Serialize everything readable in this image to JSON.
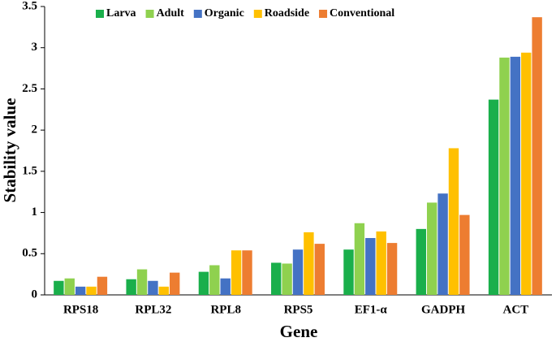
{
  "chart_data": {
    "type": "bar",
    "x_label": "Gene",
    "y_label": "Stability value",
    "categories": [
      "RPS18",
      "RPL32",
      "RPL8",
      "RPS5",
      "EF1-α",
      "GADPH",
      "ACT"
    ],
    "series": [
      {
        "name": "Larva",
        "color": "#1aaf4b",
        "values": [
          0.17,
          0.19,
          0.28,
          0.39,
          0.55,
          0.8,
          2.37
        ]
      },
      {
        "name": "Adult",
        "color": "#8fd14f",
        "values": [
          0.2,
          0.31,
          0.36,
          0.38,
          0.87,
          1.12,
          2.88
        ]
      },
      {
        "name": "Organic",
        "color": "#4472c4",
        "values": [
          0.1,
          0.17,
          0.2,
          0.55,
          0.69,
          1.23,
          2.89
        ]
      },
      {
        "name": "Roadside",
        "color": "#ffc000",
        "values": [
          0.1,
          0.1,
          0.54,
          0.76,
          0.77,
          1.78,
          2.94
        ]
      },
      {
        "name": "Conventional",
        "color": "#ed7d31",
        "values": [
          0.22,
          0.27,
          0.54,
          0.62,
          0.63,
          0.97,
          3.37
        ]
      }
    ],
    "ylim": [
      0,
      3.5
    ],
    "yticks": [
      0,
      0.5,
      1,
      1.5,
      2,
      2.5,
      3,
      3.5
    ],
    "grid": false,
    "legend_position": "top"
  }
}
